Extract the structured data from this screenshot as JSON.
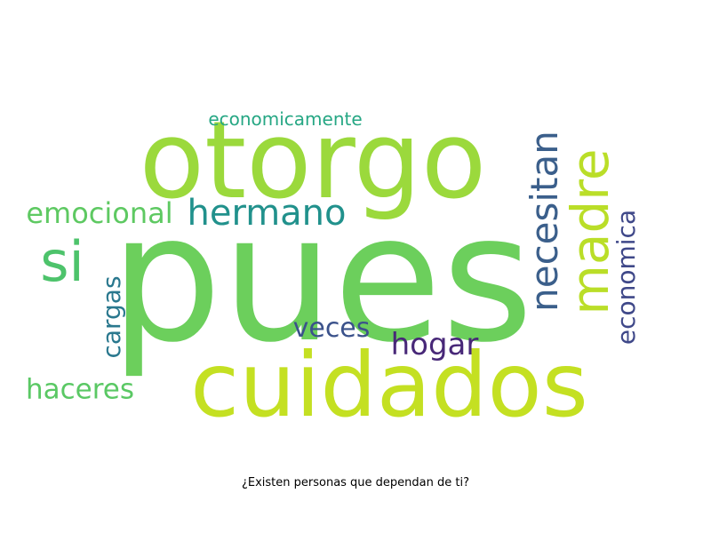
{
  "wordcloud": {
    "words": {
      "pues": "pues",
      "otorgo": "otorgo",
      "cuidados": "cuidados",
      "madre": "madre",
      "necesitan": "necesitan",
      "hermano": "hermano",
      "si": "si",
      "emocional": "emocional",
      "economica": "economica",
      "cargas": "cargas",
      "veces": "veces",
      "hogar": "hogar",
      "haceres": "haceres",
      "economicamente": "economicamente"
    }
  },
  "caption": "¿Existen personas que dependan de ti?",
  "colors": {
    "background": "#ffffff",
    "caption": "#000000"
  }
}
